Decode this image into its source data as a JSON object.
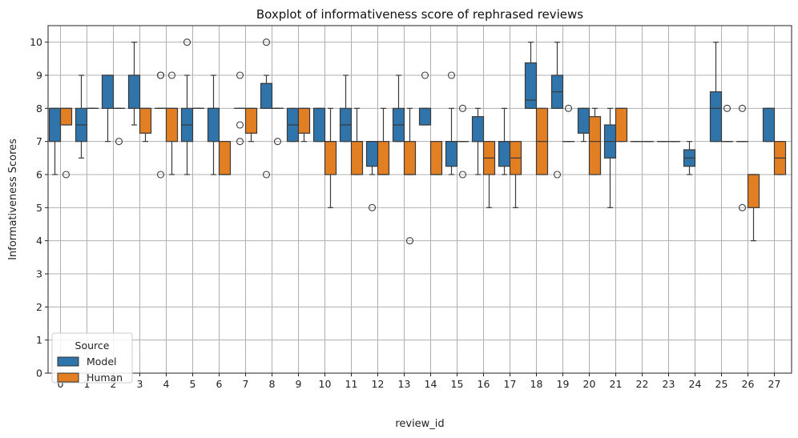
{
  "chart_data": {
    "type": "boxplot",
    "title": "Boxplot of informativeness score of rephrased reviews",
    "xlabel": "review_id",
    "ylabel": "Informativeness Scores",
    "ylim": [
      0,
      10.5
    ],
    "yticks": [
      "0",
      "1",
      "2",
      "3",
      "4",
      "5",
      "6",
      "7",
      "8",
      "9",
      "10"
    ],
    "categories": [
      "0",
      "1",
      "2",
      "3",
      "4",
      "5",
      "6",
      "7",
      "8",
      "9",
      "10",
      "11",
      "12",
      "13",
      "14",
      "15",
      "16",
      "17",
      "18",
      "19",
      "20",
      "21",
      "22",
      "23",
      "24",
      "25",
      "26",
      "27"
    ],
    "grid": true,
    "legend": {
      "title": "Source",
      "placement": "lower-left"
    },
    "series": [
      {
        "name": "Model",
        "color": "#2f74aa",
        "boxes": [
          {
            "wl": 6,
            "q1": 7,
            "med": 8,
            "q3": 8,
            "wh": 8,
            "fliers": []
          },
          {
            "wl": 6.5,
            "q1": 7,
            "med": 7.5,
            "q3": 8,
            "wh": 9,
            "fliers": []
          },
          {
            "wl": 7,
            "q1": 8,
            "med": 9,
            "q3": 9,
            "wh": 9,
            "fliers": []
          },
          {
            "wl": 7.5,
            "q1": 8,
            "med": 9,
            "q3": 9,
            "wh": 10,
            "fliers": []
          },
          {
            "wl": 8,
            "q1": 8,
            "med": 8,
            "q3": 8,
            "wh": 8,
            "fliers": [
              6,
              9,
              9
            ]
          },
          {
            "wl": 6,
            "q1": 7,
            "med": 7.5,
            "q3": 8,
            "wh": 9,
            "fliers": [
              10
            ]
          },
          {
            "wl": 6,
            "q1": 7,
            "med": 8,
            "q3": 8,
            "wh": 9,
            "fliers": []
          },
          {
            "wl": 8,
            "q1": 8,
            "med": 8,
            "q3": 8,
            "wh": 8,
            "fliers": [
              7,
              7.5,
              9
            ]
          },
          {
            "wl": 8,
            "q1": 8,
            "med": 8.75,
            "q3": 8.75,
            "wh": 9,
            "fliers": [
              6,
              10
            ]
          },
          {
            "wl": 7,
            "q1": 7,
            "med": 7.5,
            "q3": 8,
            "wh": 8,
            "fliers": []
          },
          {
            "wl": 7,
            "q1": 7,
            "med": 8,
            "q3": 8,
            "wh": 8,
            "fliers": []
          },
          {
            "wl": 7,
            "q1": 7,
            "med": 7.5,
            "q3": 8,
            "wh": 9,
            "fliers": []
          },
          {
            "wl": 6,
            "q1": 6.25,
            "med": 7,
            "q3": 7,
            "wh": 7,
            "fliers": [
              5
            ]
          },
          {
            "wl": 7,
            "q1": 7,
            "med": 7.5,
            "q3": 8,
            "wh": 9,
            "fliers": []
          },
          {
            "wl": 7.5,
            "q1": 7.5,
            "med": 8,
            "q3": 8,
            "wh": 8,
            "fliers": [
              9
            ]
          },
          {
            "wl": 6,
            "q1": 6.25,
            "med": 7,
            "q3": 7,
            "wh": 8,
            "fliers": [
              9
            ]
          },
          {
            "wl": 6,
            "q1": 7,
            "med": 7,
            "q3": 7.75,
            "wh": 8,
            "fliers": []
          },
          {
            "wl": 6,
            "q1": 6.25,
            "med": 7,
            "q3": 7,
            "wh": 8,
            "fliers": []
          },
          {
            "wl": 8,
            "q1": 8,
            "med": 8.25,
            "q3": 9.375,
            "wh": 10,
            "fliers": []
          },
          {
            "wl": 8,
            "q1": 8,
            "med": 8.5,
            "q3": 9,
            "wh": 10,
            "fliers": [
              6
            ]
          },
          {
            "wl": 7,
            "q1": 7.25,
            "med": 8,
            "q3": 8,
            "wh": 8,
            "fliers": []
          },
          {
            "wl": 5,
            "q1": 6.5,
            "med": 7,
            "q3": 7.5,
            "wh": 8,
            "fliers": []
          },
          {
            "wl": 7,
            "q1": 7,
            "med": 7,
            "q3": 7,
            "wh": 7,
            "fliers": []
          },
          {
            "wl": 7,
            "q1": 7,
            "med": 7,
            "q3": 7,
            "wh": 7,
            "fliers": []
          },
          {
            "wl": 6,
            "q1": 6.25,
            "med": 6.5,
            "q3": 6.75,
            "wh": 7,
            "fliers": []
          },
          {
            "wl": 7,
            "q1": 7,
            "med": 8,
            "q3": 8.5,
            "wh": 10,
            "fliers": []
          },
          {
            "wl": 7,
            "q1": 7,
            "med": 7,
            "q3": 7,
            "wh": 7,
            "fliers": [
              5,
              8
            ]
          },
          {
            "wl": 7,
            "q1": 7,
            "med": 8,
            "q3": 8,
            "wh": 8,
            "fliers": []
          }
        ]
      },
      {
        "name": "Human",
        "color": "#e37f23",
        "boxes": [
          {
            "wl": 7.5,
            "q1": 7.5,
            "med": 8,
            "q3": 8,
            "wh": 8,
            "fliers": [
              6
            ]
          },
          {
            "wl": 8,
            "q1": 8,
            "med": 8,
            "q3": 8,
            "wh": 8,
            "fliers": []
          },
          {
            "wl": 8,
            "q1": 8,
            "med": 8,
            "q3": 8,
            "wh": 8,
            "fliers": [
              7
            ]
          },
          {
            "wl": 7,
            "q1": 7.25,
            "med": 8,
            "q3": 8,
            "wh": 8,
            "fliers": []
          },
          {
            "wl": 6,
            "q1": 7,
            "med": 8,
            "q3": 8,
            "wh": 8,
            "fliers": [
              9
            ]
          },
          {
            "wl": 8,
            "q1": 8,
            "med": 8,
            "q3": 8,
            "wh": 8,
            "fliers": []
          },
          {
            "wl": 6,
            "q1": 6,
            "med": 6,
            "q3": 7,
            "wh": 7,
            "fliers": []
          },
          {
            "wl": 7,
            "q1": 7.25,
            "med": 8,
            "q3": 8,
            "wh": 8,
            "fliers": []
          },
          {
            "wl": 8,
            "q1": 8,
            "med": 8,
            "q3": 8,
            "wh": 8,
            "fliers": [
              7
            ]
          },
          {
            "wl": 7,
            "q1": 7.25,
            "med": 8,
            "q3": 8,
            "wh": 8,
            "fliers": []
          },
          {
            "wl": 5,
            "q1": 6,
            "med": 7,
            "q3": 7,
            "wh": 8,
            "fliers": []
          },
          {
            "wl": 6,
            "q1": 6,
            "med": 7,
            "q3": 7,
            "wh": 8,
            "fliers": []
          },
          {
            "wl": 6,
            "q1": 6,
            "med": 6,
            "q3": 7,
            "wh": 8,
            "fliers": []
          },
          {
            "wl": 6,
            "q1": 6,
            "med": 6,
            "q3": 7,
            "wh": 8,
            "fliers": [
              4
            ]
          },
          {
            "wl": 6,
            "q1": 6,
            "med": 6,
            "q3": 7,
            "wh": 7,
            "fliers": []
          },
          {
            "wl": 7,
            "q1": 7,
            "med": 7,
            "q3": 7,
            "wh": 7,
            "fliers": [
              6,
              8
            ]
          },
          {
            "wl": 5,
            "q1": 6,
            "med": 6.5,
            "q3": 7,
            "wh": 7,
            "fliers": []
          },
          {
            "wl": 5,
            "q1": 6,
            "med": 6.5,
            "q3": 7,
            "wh": 7,
            "fliers": []
          },
          {
            "wl": 6,
            "q1": 6,
            "med": 7,
            "q3": 8,
            "wh": 8,
            "fliers": []
          },
          {
            "wl": 7,
            "q1": 7,
            "med": 7,
            "q3": 7,
            "wh": 7,
            "fliers": [
              8
            ]
          },
          {
            "wl": 6,
            "q1": 6,
            "med": 7,
            "q3": 7.75,
            "wh": 8,
            "fliers": []
          },
          {
            "wl": 7,
            "q1": 7,
            "med": 8,
            "q3": 8,
            "wh": 8,
            "fliers": []
          },
          {
            "wl": 7,
            "q1": 7,
            "med": 7,
            "q3": 7,
            "wh": 7,
            "fliers": []
          },
          {
            "wl": 7,
            "q1": 7,
            "med": 7,
            "q3": 7,
            "wh": 7,
            "fliers": []
          },
          null,
          {
            "wl": 7,
            "q1": 7,
            "med": 7,
            "q3": 7,
            "wh": 7,
            "fliers": [
              8
            ]
          },
          {
            "wl": 4,
            "q1": 5,
            "med": 6,
            "q3": 6,
            "wh": 6,
            "fliers": []
          },
          {
            "wl": 6,
            "q1": 6,
            "med": 6.5,
            "q3": 7,
            "wh": 7,
            "fliers": []
          }
        ]
      }
    ]
  }
}
